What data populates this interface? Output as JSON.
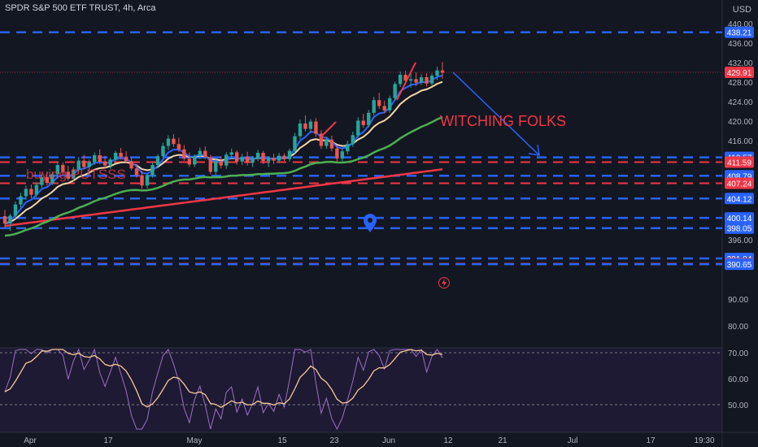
{
  "header": {
    "title": "SPDR S&P 500 ETF TRUST, 4h, Arca",
    "currency": "USD"
  },
  "colors": {
    "background": "#131722",
    "up": "#26a69a",
    "down": "#ef5350",
    "blue_level": "#2962ff",
    "red_level": "#f23645",
    "ema_fast": "#2962ff",
    "ema_mid": "#f5d5a8",
    "ema_slow": "#4caf50",
    "sma_long": "#f23645",
    "rsi": "#9c6fc4",
    "rsi_ma": "#f5c89a"
  },
  "chart_data": {
    "type": "candlestick",
    "symbol": "SPY",
    "interval": "4h",
    "price_axis": {
      "ticks": [
        440.0,
        436.0,
        432.0,
        428.0,
        424.0,
        420.0,
        416.0,
        396.0,
        90.0,
        80.0,
        70.0,
        60.0,
        50.0
      ]
    },
    "x_ticks": [
      "Apr",
      "17",
      "May",
      "15",
      "23",
      "Jun",
      "12",
      "21",
      "Jul",
      "17",
      "19:30"
    ],
    "horizontal_levels": [
      {
        "value": "438.21",
        "style": "blue"
      },
      {
        "value": "412.57",
        "style": "blue"
      },
      {
        "value": "411.59",
        "style": "red"
      },
      {
        "value": "408.79",
        "style": "blue"
      },
      {
        "value": "407.24",
        "style": "red"
      },
      {
        "value": "404.12",
        "style": "blue"
      },
      {
        "value": "400.14",
        "style": "blue"
      },
      {
        "value": "398.05",
        "style": "blue"
      },
      {
        "value": "391.84",
        "style": "blue"
      },
      {
        "value": "390.76",
        "style": "red"
      },
      {
        "value": "390.65",
        "style": "blue"
      }
    ],
    "last_price": "429.91",
    "annotations": [
      "WITCHING FOLKS",
      "buying PUTSSS"
    ],
    "candles": [
      [
        400.5,
        401.8,
        398.2,
        399.0
      ],
      [
        399.0,
        401.0,
        397.5,
        400.6
      ],
      [
        400.6,
        403.5,
        400.0,
        402.9
      ],
      [
        402.9,
        405.3,
        402.1,
        404.6
      ],
      [
        404.6,
        406.8,
        403.9,
        406.1
      ],
      [
        406.1,
        407.0,
        404.2,
        404.9
      ],
      [
        404.9,
        407.4,
        404.4,
        406.9
      ],
      [
        406.9,
        409.3,
        406.3,
        408.5
      ],
      [
        408.5,
        409.5,
        406.8,
        407.3
      ],
      [
        407.3,
        409.6,
        406.9,
        409.1
      ],
      [
        409.1,
        411.7,
        408.6,
        411.0
      ],
      [
        411.0,
        411.5,
        408.9,
        409.6
      ],
      [
        409.6,
        410.8,
        407.8,
        408.2
      ],
      [
        408.2,
        410.6,
        407.7,
        410.1
      ],
      [
        410.1,
        412.6,
        409.6,
        411.9
      ],
      [
        411.9,
        413.1,
        410.1,
        410.6
      ],
      [
        410.6,
        412.1,
        409.0,
        411.6
      ],
      [
        411.6,
        413.6,
        411.0,
        413.0
      ],
      [
        413.0,
        414.2,
        411.2,
        411.7
      ],
      [
        411.7,
        412.9,
        410.2,
        410.9
      ],
      [
        410.9,
        412.5,
        410.2,
        412.1
      ],
      [
        412.1,
        413.9,
        411.5,
        413.5
      ],
      [
        413.5,
        414.5,
        412.1,
        412.7
      ],
      [
        412.7,
        413.8,
        411.3,
        411.8
      ],
      [
        411.8,
        412.5,
        409.9,
        410.3
      ],
      [
        410.3,
        411.2,
        408.4,
        408.9
      ],
      [
        408.9,
        409.8,
        406.1,
        406.8
      ],
      [
        406.8,
        409.3,
        406.2,
        408.9
      ],
      [
        408.9,
        411.4,
        408.4,
        411.0
      ],
      [
        411.0,
        413.2,
        410.6,
        412.8
      ],
      [
        412.8,
        415.6,
        412.3,
        414.9
      ],
      [
        414.9,
        417.1,
        414.1,
        416.4
      ],
      [
        416.4,
        417.3,
        414.7,
        415.3
      ],
      [
        415.3,
        416.6,
        413.7,
        414.2
      ],
      [
        414.2,
        415.1,
        411.9,
        412.3
      ],
      [
        412.3,
        413.6,
        410.6,
        411.1
      ],
      [
        411.1,
        413.2,
        410.6,
        412.8
      ],
      [
        412.8,
        414.6,
        412.2,
        413.9
      ],
      [
        413.9,
        414.8,
        412.2,
        412.6
      ],
      [
        412.6,
        413.1,
        409.1,
        409.6
      ],
      [
        409.6,
        412.3,
        409.0,
        411.8
      ],
      [
        411.8,
        412.8,
        410.3,
        410.9
      ],
      [
        410.9,
        413.6,
        410.2,
        413.1
      ],
      [
        413.1,
        414.4,
        412.2,
        413.6
      ],
      [
        413.6,
        414.0,
        411.1,
        411.7
      ],
      [
        411.7,
        413.3,
        411.0,
        412.7
      ],
      [
        412.7,
        413.7,
        410.9,
        411.5
      ],
      [
        411.5,
        412.8,
        410.6,
        412.3
      ],
      [
        412.3,
        414.1,
        411.8,
        413.5
      ],
      [
        413.5,
        413.9,
        411.2,
        411.8
      ],
      [
        411.8,
        412.8,
        410.6,
        412.4
      ],
      [
        412.4,
        413.3,
        411.2,
        411.9
      ],
      [
        411.9,
        413.5,
        411.4,
        412.9
      ],
      [
        412.9,
        413.4,
        411.8,
        412.2
      ],
      [
        412.2,
        414.4,
        411.7,
        413.9
      ],
      [
        413.9,
        417.6,
        413.4,
        416.9
      ],
      [
        416.9,
        420.3,
        416.3,
        419.5
      ],
      [
        419.5,
        421.2,
        417.9,
        418.4
      ],
      [
        418.4,
        420.4,
        417.6,
        419.9
      ],
      [
        419.9,
        420.6,
        416.8,
        417.4
      ],
      [
        417.4,
        418.1,
        414.3,
        414.9
      ],
      [
        414.9,
        416.8,
        414.3,
        416.2
      ],
      [
        416.2,
        417.0,
        413.8,
        414.4
      ],
      [
        414.4,
        415.1,
        411.6,
        412.3
      ],
      [
        412.3,
        414.4,
        411.8,
        413.8
      ],
      [
        413.8,
        416.0,
        413.2,
        415.3
      ],
      [
        415.3,
        417.8,
        414.7,
        417.1
      ],
      [
        417.1,
        420.8,
        416.6,
        420.1
      ],
      [
        420.1,
        421.5,
        418.6,
        419.2
      ],
      [
        419.2,
        422.3,
        418.7,
        421.7
      ],
      [
        421.7,
        425.0,
        421.1,
        424.3
      ],
      [
        424.3,
        425.8,
        422.5,
        423.1
      ],
      [
        423.1,
        424.2,
        421.6,
        422.2
      ],
      [
        422.2,
        425.2,
        421.7,
        424.7
      ],
      [
        424.7,
        428.1,
        424.2,
        427.6
      ],
      [
        427.6,
        430.2,
        427.0,
        429.5
      ],
      [
        429.5,
        430.3,
        427.5,
        428.3
      ],
      [
        428.3,
        429.9,
        426.9,
        428.6
      ],
      [
        428.6,
        430.0,
        427.2,
        427.9
      ],
      [
        427.9,
        429.6,
        427.4,
        429.0
      ],
      [
        429.0,
        429.8,
        427.1,
        427.7
      ],
      [
        427.7,
        429.8,
        427.2,
        429.3
      ],
      [
        429.3,
        431.2,
        428.4,
        430.4
      ],
      [
        430.4,
        432.1,
        428.7,
        429.91
      ]
    ],
    "rsi_axis": [
      "70.00",
      "60.00",
      "50.00"
    ]
  }
}
